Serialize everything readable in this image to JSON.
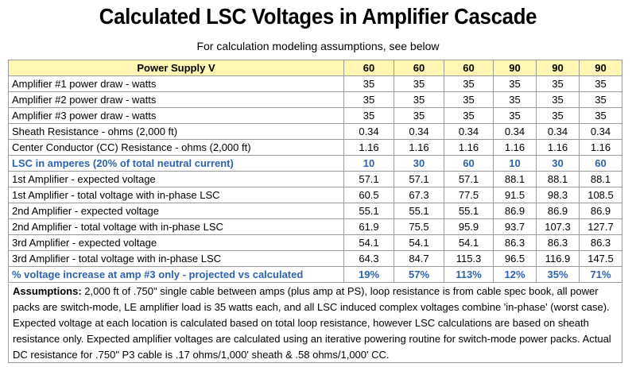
{
  "title": "Calculated LSC Voltages in Amplifier Cascade",
  "subtitle": "For calculation modeling assumptions, see below",
  "table": {
    "header": {
      "label": "Power Supply V",
      "values": [
        "60",
        "60",
        "60",
        "90",
        "90",
        "90"
      ]
    },
    "rows": [
      {
        "label": "Amplifier #1 power draw - watts",
        "values": [
          "35",
          "35",
          "35",
          "35",
          "35",
          "35"
        ],
        "highlight": false
      },
      {
        "label": "Amplifier #2 power draw - watts",
        "values": [
          "35",
          "35",
          "35",
          "35",
          "35",
          "35"
        ],
        "highlight": false
      },
      {
        "label": "Amplifier #3 power draw - watts",
        "values": [
          "35",
          "35",
          "35",
          "35",
          "35",
          "35"
        ],
        "highlight": false
      },
      {
        "label": "Sheath Resistance - ohms (2,000 ft)",
        "values": [
          "0.34",
          "0.34",
          "0.34",
          "0.34",
          "0.34",
          "0.34"
        ],
        "highlight": false
      },
      {
        "label": "Center Conductor (CC) Resistance - ohms (2,000 ft)",
        "values": [
          "1.16",
          "1.16",
          "1.16",
          "1.16",
          "1.16",
          "1.16"
        ],
        "highlight": false
      },
      {
        "label": "LSC in amperes (20% of total neutral current)",
        "values": [
          "10",
          "30",
          "60",
          "10",
          "30",
          "60"
        ],
        "highlight": true
      },
      {
        "label": "1st Amplifier - expected voltage",
        "values": [
          "57.1",
          "57.1",
          "57.1",
          "88.1",
          "88.1",
          "88.1"
        ],
        "highlight": false
      },
      {
        "label": "1st Amplifier - total voltage with in-phase LSC",
        "values": [
          "60.5",
          "67.3",
          "77.5",
          "91.5",
          "98.3",
          "108.5"
        ],
        "highlight": false
      },
      {
        "label": "2nd Amplifier - expected voltage",
        "values": [
          "55.1",
          "55.1",
          "55.1",
          "86.9",
          "86.9",
          "86.9"
        ],
        "highlight": false
      },
      {
        "label": "2nd Amplifier - total voltage with in-phase LSC",
        "values": [
          "61.9",
          "75.5",
          "95.9",
          "93.7",
          "107.3",
          "127.7"
        ],
        "highlight": false
      },
      {
        "label": "3rd Amplifier - expected voltage",
        "values": [
          "54.1",
          "54.1",
          "54.1",
          "86.3",
          "86.3",
          "86.3"
        ],
        "highlight": false
      },
      {
        "label": "3rd Amplifier - total voltage with in-phase LSC",
        "values": [
          "64.3",
          "84.7",
          "115.3",
          "96.5",
          "116.9",
          "147.5"
        ],
        "highlight": false
      },
      {
        "label": "% voltage increase at amp #3 only - projected vs calculated",
        "values": [
          "19%",
          "57%",
          "113%",
          "12%",
          "35%",
          "71%"
        ],
        "highlight": true
      }
    ]
  },
  "assumptions": {
    "label": "Assumptions:",
    "text": " 2,000 ft of .750\" single cable between amps (plus amp at PS), loop resistance is from cable spec book, all power packs are switch-mode, LE amplifier load is 35 watts each, and all LSC induced complex voltages combine 'in-phase' (worst case). Expected voltage at each location is calculated based on total loop resistance, however LSC calculations are based on sheath resistance only. Expected amplifier voltages are calculated using an iterative powering routine for switch-mode power packs. Actual DC resistance for .750\" P3 cable is .17 ohms/1,000' sheath & .58 ohms/1,000' CC."
  },
  "colors": {
    "header_bg": "#fff7b3",
    "highlight_text": "#2d63ac",
    "grid_line": "#9a9a9a"
  }
}
